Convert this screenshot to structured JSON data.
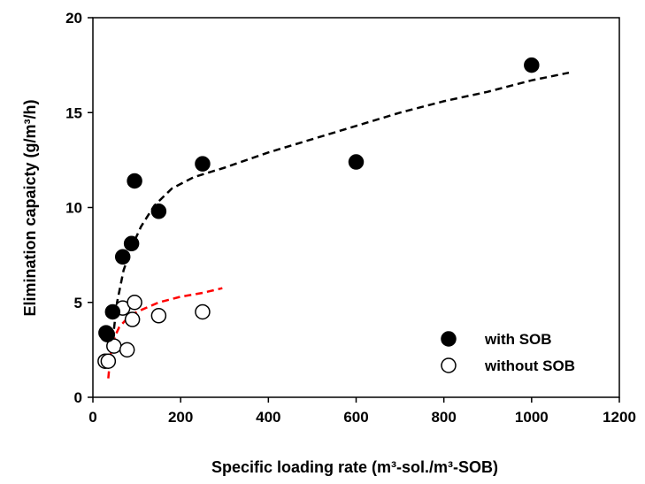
{
  "chart_data": {
    "type": "scatter",
    "title": "",
    "xlabel": "Specific loading rate (m³-sol./m³-SOB)",
    "ylabel": "Elimination capaicty (g/m³/h)",
    "xlim": [
      0,
      1200
    ],
    "ylim": [
      0,
      20
    ],
    "x_ticks": [
      "0",
      "200",
      "400",
      "600",
      "800",
      "1000",
      "1200"
    ],
    "y_ticks": [
      "0",
      "5",
      "10",
      "15",
      "20"
    ],
    "grid": false,
    "legend_position": "bottom-right",
    "series": [
      {
        "name": "with SOB",
        "marker": "filled-circle",
        "color": "#000000",
        "points": [
          {
            "x": 30,
            "y": 3.4
          },
          {
            "x": 33,
            "y": 3.3
          },
          {
            "x": 45,
            "y": 4.5
          },
          {
            "x": 68,
            "y": 7.4
          },
          {
            "x": 88,
            "y": 8.1
          },
          {
            "x": 95,
            "y": 11.4
          },
          {
            "x": 150,
            "y": 9.8
          },
          {
            "x": 250,
            "y": 12.3
          },
          {
            "x": 600,
            "y": 12.4
          },
          {
            "x": 1000,
            "y": 17.5
          }
        ]
      },
      {
        "name": "without SOB",
        "marker": "open-circle",
        "color": "#000000",
        "points": [
          {
            "x": 28,
            "y": 1.9
          },
          {
            "x": 35,
            "y": 1.9
          },
          {
            "x": 48,
            "y": 2.7
          },
          {
            "x": 68,
            "y": 4.7
          },
          {
            "x": 78,
            "y": 2.5
          },
          {
            "x": 90,
            "y": 4.1
          },
          {
            "x": 95,
            "y": 5.0
          },
          {
            "x": 150,
            "y": 4.3
          },
          {
            "x": 250,
            "y": 4.5
          }
        ]
      }
    ],
    "trend_lines": [
      {
        "for": "with SOB",
        "style": "dashed",
        "color": "#000000",
        "points": [
          {
            "x": 45,
            "y": 3.0
          },
          {
            "x": 55,
            "y": 5.0
          },
          {
            "x": 70,
            "y": 6.7
          },
          {
            "x": 90,
            "y": 8.0
          },
          {
            "x": 110,
            "y": 9.0
          },
          {
            "x": 140,
            "y": 10.1
          },
          {
            "x": 180,
            "y": 11.0
          },
          {
            "x": 230,
            "y": 11.6
          },
          {
            "x": 300,
            "y": 12.1
          },
          {
            "x": 400,
            "y": 12.9
          },
          {
            "x": 500,
            "y": 13.6
          },
          {
            "x": 600,
            "y": 14.3
          },
          {
            "x": 700,
            "y": 15.0
          },
          {
            "x": 800,
            "y": 15.6
          },
          {
            "x": 900,
            "y": 16.1
          },
          {
            "x": 1000,
            "y": 16.7
          },
          {
            "x": 1085,
            "y": 17.1
          }
        ]
      },
      {
        "for": "without SOB",
        "style": "dashed",
        "color": "#ff0000",
        "points": [
          {
            "x": 35,
            "y": 1.0
          },
          {
            "x": 40,
            "y": 2.2
          },
          {
            "x": 50,
            "y": 3.2
          },
          {
            "x": 60,
            "y": 3.7
          },
          {
            "x": 80,
            "y": 4.2
          },
          {
            "x": 100,
            "y": 4.5
          },
          {
            "x": 150,
            "y": 5.0
          },
          {
            "x": 200,
            "y": 5.3
          },
          {
            "x": 250,
            "y": 5.5
          },
          {
            "x": 295,
            "y": 5.75
          }
        ]
      }
    ]
  }
}
